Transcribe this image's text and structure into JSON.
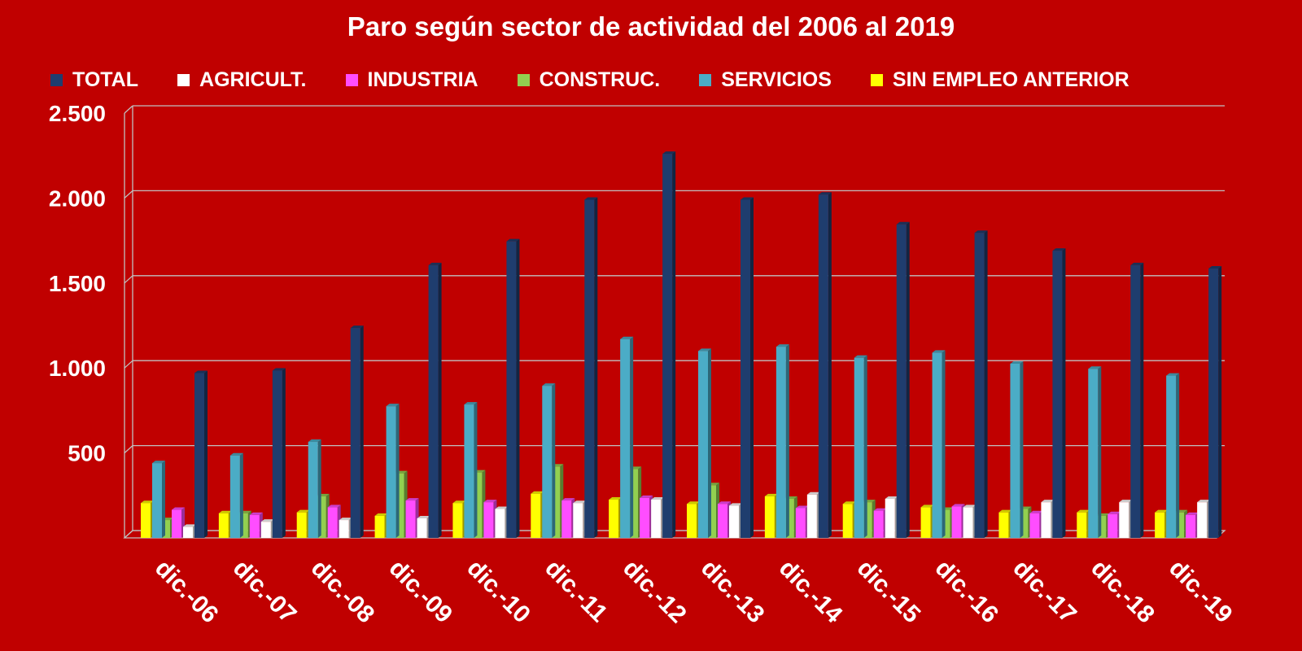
{
  "chart_data": {
    "type": "bar",
    "title": "Paro según sector de actividad del 2006 al 2019",
    "categories": [
      "dic.-06",
      "dic.-07",
      "dic.-08",
      "dic.-09",
      "dic.-10",
      "dic.-11",
      "dic.-12",
      "dic.-13",
      "dic.-14",
      "dic.-15",
      "dic.-16",
      "dic.-17",
      "dic.-18",
      "dic.-19"
    ],
    "series": [
      {
        "name": "TOTAL",
        "color": "#1f3d6e",
        "values": [
          970,
          985,
          1235,
          1605,
          1745,
          1990,
          2260,
          1990,
          2020,
          1845,
          1795,
          1690,
          1605,
          1585
        ]
      },
      {
        "name": "AGRICULT.",
        "color": "#ffffff",
        "values": [
          65,
          95,
          105,
          115,
          170,
          205,
          225,
          190,
          255,
          230,
          180,
          210,
          210,
          210
        ]
      },
      {
        "name": "INDUSTRIA",
        "color": "#ff4dff",
        "values": [
          165,
          135,
          180,
          220,
          210,
          220,
          235,
          200,
          175,
          160,
          185,
          145,
          140,
          135
        ]
      },
      {
        "name": "CONSTRUC.",
        "color": "#92d050",
        "values": [
          105,
          145,
          245,
          380,
          385,
          420,
          405,
          310,
          230,
          210,
          165,
          170,
          130,
          150
        ]
      },
      {
        "name": "SERVICIOS",
        "color": "#4bacc6",
        "values": [
          440,
          485,
          565,
          775,
          785,
          895,
          1170,
          1100,
          1125,
          1060,
          1090,
          1025,
          995,
          955
        ]
      },
      {
        "name": "SIN EMPLEO ANTERIOR",
        "color": "#ffff00",
        "values": [
          205,
          145,
          150,
          130,
          205,
          260,
          225,
          200,
          245,
          200,
          180,
          150,
          150,
          150
        ]
      }
    ],
    "ylim": [
      0,
      2500
    ],
    "yticks": [
      0,
      500,
      1000,
      1500,
      2000,
      2500
    ],
    "ytick_labels": [
      "",
      "500",
      "1.000",
      "1.500",
      "2.000",
      "2.500"
    ],
    "legend_position": "top",
    "grid": true,
    "background_color": "#c00000",
    "text_color": "#ffffff",
    "grid_color": "#c0c0c0"
  }
}
